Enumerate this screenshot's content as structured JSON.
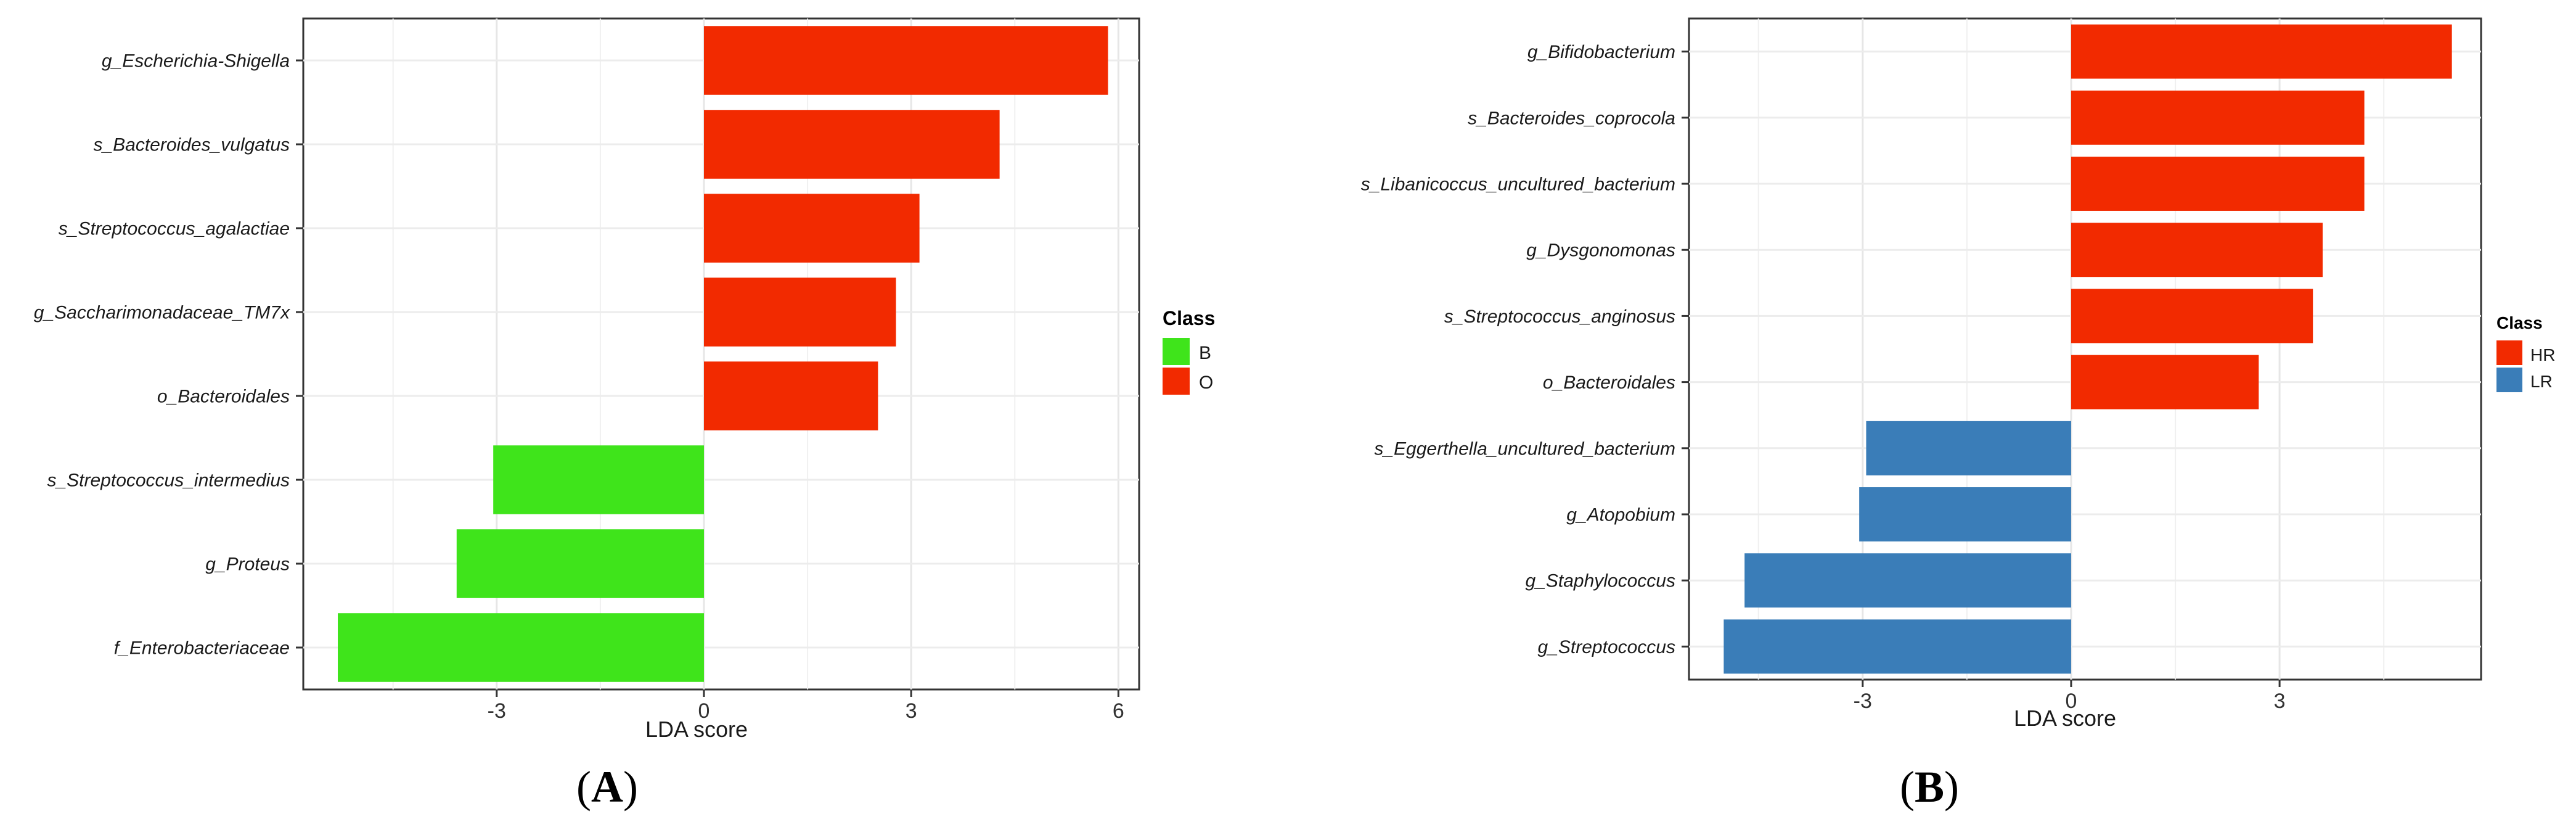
{
  "charts": [
    {
      "panel_label_prefix": "(",
      "panel_label_letter": "A",
      "panel_label_suffix": ")",
      "legend_title": "Class",
      "x_tick_labels": [
        "-3",
        "0",
        "3",
        "6"
      ]
    },
    {
      "panel_label_prefix": "(",
      "panel_label_letter": "B",
      "panel_label_suffix": ")",
      "legend_title": "Class",
      "x_tick_labels": [
        "-3",
        "0",
        "3"
      ]
    }
  ],
  "chart_data": [
    {
      "type": "bar",
      "orientation": "horizontal",
      "xlabel": "LDA score",
      "ylabel": "",
      "xlim": [
        -5.8,
        6.3
      ],
      "x_ticks": [
        -3,
        0,
        3,
        6
      ],
      "grid": true,
      "legend": {
        "title": "Class",
        "position": "right",
        "entries": [
          {
            "name": "B",
            "color": "#3fe41b"
          },
          {
            "name": "O",
            "color": "#f22a00"
          }
        ]
      },
      "categories": [
        "g_Escherichia-Shigella",
        "s_Bacteroides_vulgatus",
        "s_Streptococcus_agalactiae",
        "g_Saccharimonadaceae_TM7x",
        "o_Bacteroidales",
        "s_Streptococcus_intermedius",
        "g_Proteus",
        "f_Enterobacteriaceae"
      ],
      "values": [
        5.85,
        4.28,
        3.12,
        2.78,
        2.52,
        -3.05,
        -3.58,
        -5.3
      ],
      "classes": [
        "O",
        "O",
        "O",
        "O",
        "O",
        "B",
        "B",
        "B"
      ]
    },
    {
      "type": "bar",
      "orientation": "horizontal",
      "xlabel": "LDA score",
      "ylabel": "",
      "xlim": [
        -5.5,
        5.9
      ],
      "x_ticks": [
        -3,
        0,
        3
      ],
      "grid": true,
      "legend": {
        "title": "Class",
        "position": "right",
        "entries": [
          {
            "name": "HR",
            "color": "#f22a00"
          },
          {
            "name": "LR",
            "color": "#3a7db8"
          }
        ]
      },
      "categories": [
        "g_Bifidobacterium",
        "s_Bacteroides_coprocola",
        "s_Libanicoccus_uncultured_bacterium",
        "g_Dysgonomonas",
        "s_Streptococcus_anginosus",
        "o_Bacteroidales",
        "s_Eggerthella_uncultured_bacterium",
        "g_Atopobium",
        "g_Staphylococcus",
        "g_Streptococcus"
      ],
      "values": [
        5.48,
        4.22,
        4.22,
        3.62,
        3.48,
        2.7,
        -2.95,
        -3.05,
        -4.7,
        -5.0
      ],
      "classes": [
        "HR",
        "HR",
        "HR",
        "HR",
        "HR",
        "HR",
        "LR",
        "LR",
        "LR",
        "LR"
      ]
    }
  ]
}
